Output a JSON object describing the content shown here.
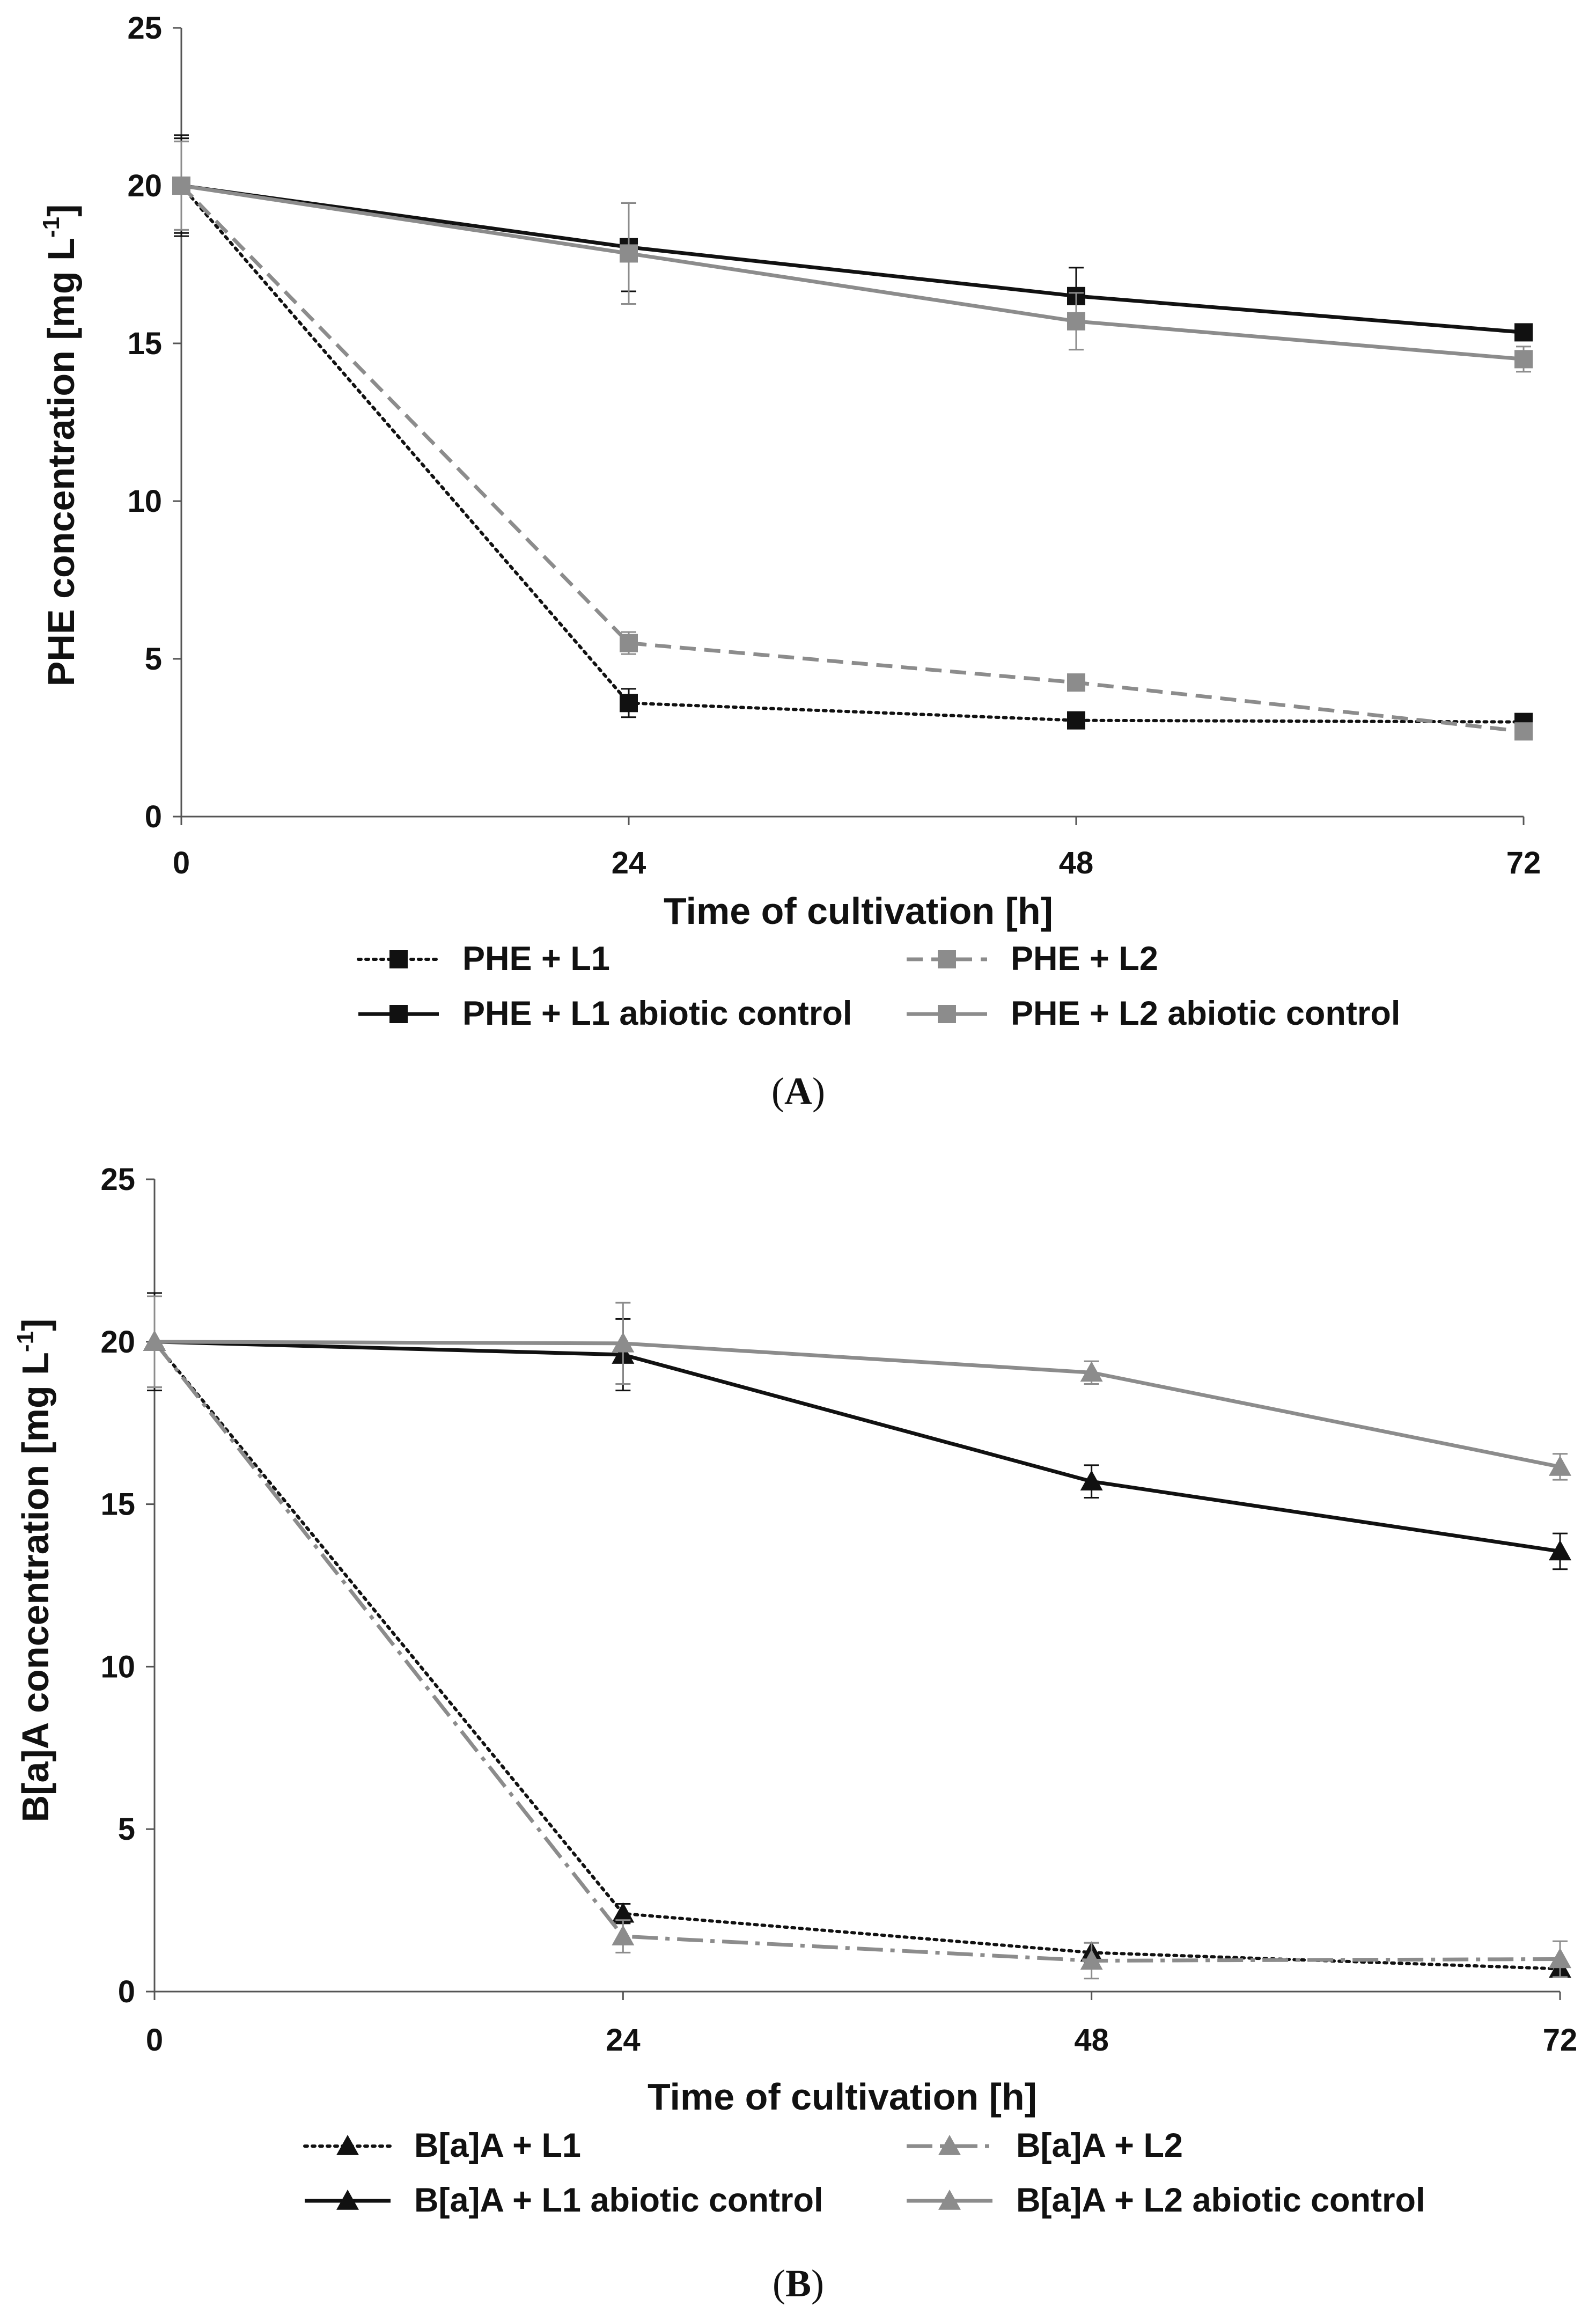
{
  "colors": {
    "black": "#111111",
    "gray": "#8c8c8c",
    "axis": "#555555"
  },
  "chart_data": [
    {
      "type": "line",
      "panel_label": "A",
      "xlabel": "Time of cultivation [h]",
      "ylabel_main": "PHE concentration [mg L",
      "ylabel_sup": "-1",
      "ylabel_close": "]",
      "x": [
        0,
        24,
        48,
        72
      ],
      "x_tick_labels": [
        "0",
        "24",
        "48",
        "72"
      ],
      "xlim": [
        0,
        72
      ],
      "ylim": [
        0,
        25
      ],
      "y_ticks": [
        0,
        5,
        10,
        15,
        20,
        25
      ],
      "y_tick_labels": [
        "0",
        "5",
        "10",
        "15",
        "20",
        "25"
      ],
      "grid": false,
      "legend_position": "bottom",
      "series": [
        {
          "name": "PHE + L1",
          "values": [
            20.0,
            3.6,
            3.05,
            3.0
          ],
          "errors": [
            1.6,
            0.45,
            0.2,
            0.15
          ],
          "color": "#111111",
          "dash": "dotted",
          "marker": "square"
        },
        {
          "name": "PHE + L2",
          "values": [
            20.0,
            5.5,
            4.25,
            2.7
          ],
          "errors": [
            1.4,
            0.35,
            0.25,
            0.2
          ],
          "color": "#8c8c8c",
          "dash": "dashed",
          "marker": "square"
        },
        {
          "name": "PHE + L1 abiotic control",
          "values": [
            20.0,
            18.05,
            16.5,
            15.35
          ],
          "errors": [
            1.5,
            1.4,
            0.9,
            0.25
          ],
          "color": "#111111",
          "dash": "solid",
          "marker": "square"
        },
        {
          "name": "PHE + L2 abiotic control",
          "values": [
            20.0,
            17.85,
            15.7,
            14.5
          ],
          "errors": [
            1.4,
            1.6,
            0.9,
            0.4
          ],
          "color": "#8c8c8c",
          "dash": "solid",
          "marker": "square"
        }
      ]
    },
    {
      "type": "line",
      "panel_label": "B",
      "xlabel": "Time of cultivation [h]",
      "ylabel_main": "B[a]A concentration [mg L",
      "ylabel_sup": "-1",
      "ylabel_close": "]",
      "x": [
        0,
        24,
        48,
        72
      ],
      "x_tick_labels": [
        "0",
        "24",
        "48",
        "72"
      ],
      "xlim": [
        0,
        72
      ],
      "ylim": [
        0,
        25
      ],
      "y_ticks": [
        0,
        5,
        10,
        15,
        20,
        25
      ],
      "y_tick_labels": [
        "0",
        "5",
        "10",
        "15",
        "20",
        "25"
      ],
      "grid": false,
      "legend_position": "bottom",
      "series": [
        {
          "name": "B[a]A + L1",
          "values": [
            20.0,
            2.4,
            1.2,
            0.7
          ],
          "errors": [
            1.4,
            0.3,
            0.3,
            0.2
          ],
          "color": "#111111",
          "dash": "dotted",
          "marker": "triangle"
        },
        {
          "name": "B[a]A + L2",
          "values": [
            20.0,
            1.7,
            0.95,
            1.0
          ],
          "errors": [
            1.4,
            0.5,
            0.55,
            0.55
          ],
          "color": "#8c8c8c",
          "dash": "dashdot",
          "marker": "triangle"
        },
        {
          "name": "B[a]A + L1 abiotic control",
          "values": [
            20.0,
            19.6,
            15.7,
            13.55
          ],
          "errors": [
            1.5,
            1.1,
            0.5,
            0.55
          ],
          "color": "#111111",
          "dash": "solid",
          "marker": "triangle"
        },
        {
          "name": "B[a]A + L2 abiotic control",
          "values": [
            20.0,
            19.95,
            19.05,
            16.15
          ],
          "errors": [
            1.4,
            1.25,
            0.35,
            0.4
          ],
          "color": "#8c8c8c",
          "dash": "solid",
          "marker": "triangle"
        }
      ]
    }
  ]
}
